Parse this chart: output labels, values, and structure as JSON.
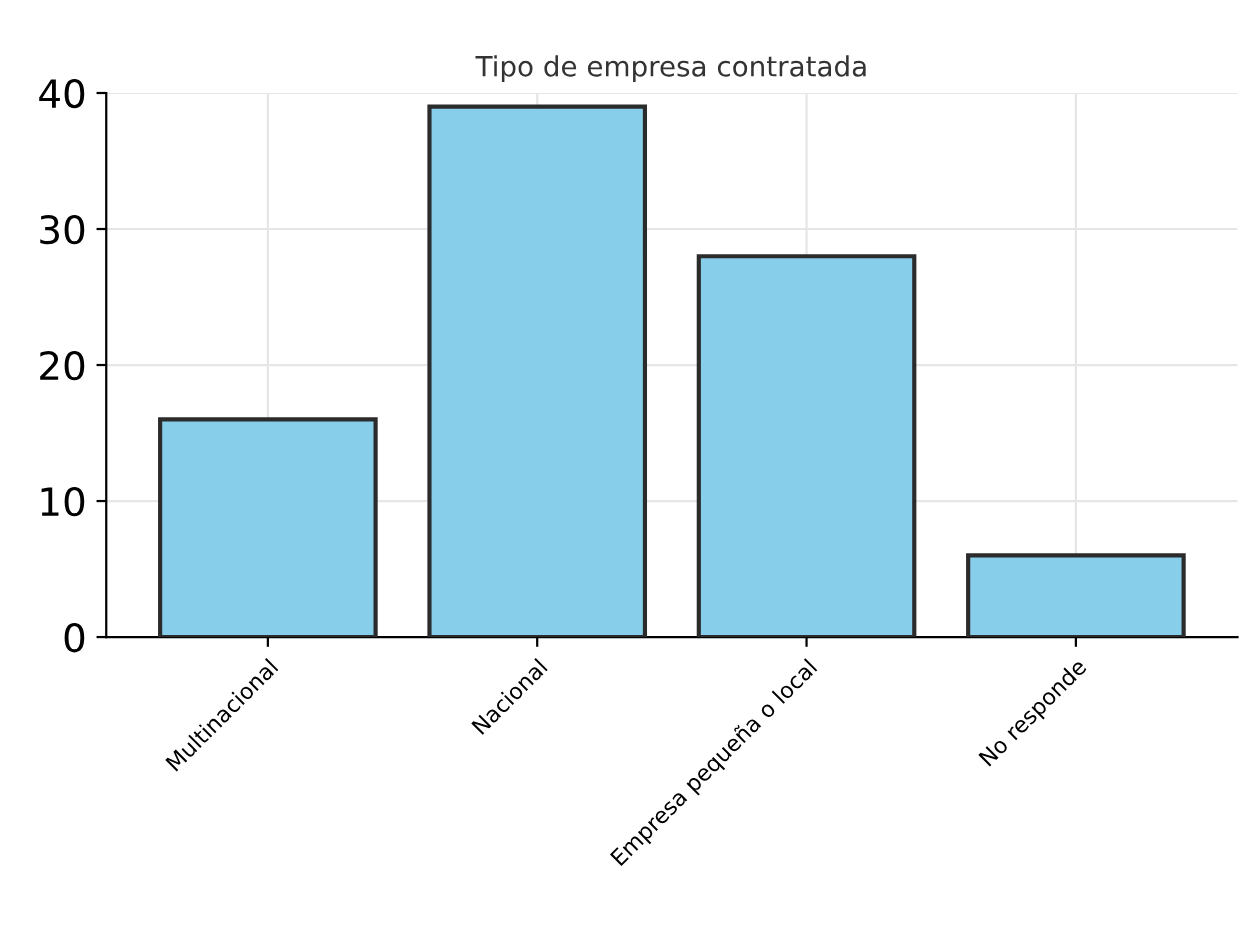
{
  "chart_data": {
    "type": "bar",
    "title": "Tipo de empresa contratada",
    "categories": [
      "Multinacional",
      "Nacional",
      "Empresa pequeña o local",
      "No responde"
    ],
    "values": [
      16,
      39,
      28,
      6
    ],
    "color": "#87ceeb",
    "ylim": [
      0,
      40
    ],
    "yticks": [
      0,
      10,
      20,
      30,
      40
    ],
    "grid": true
  }
}
